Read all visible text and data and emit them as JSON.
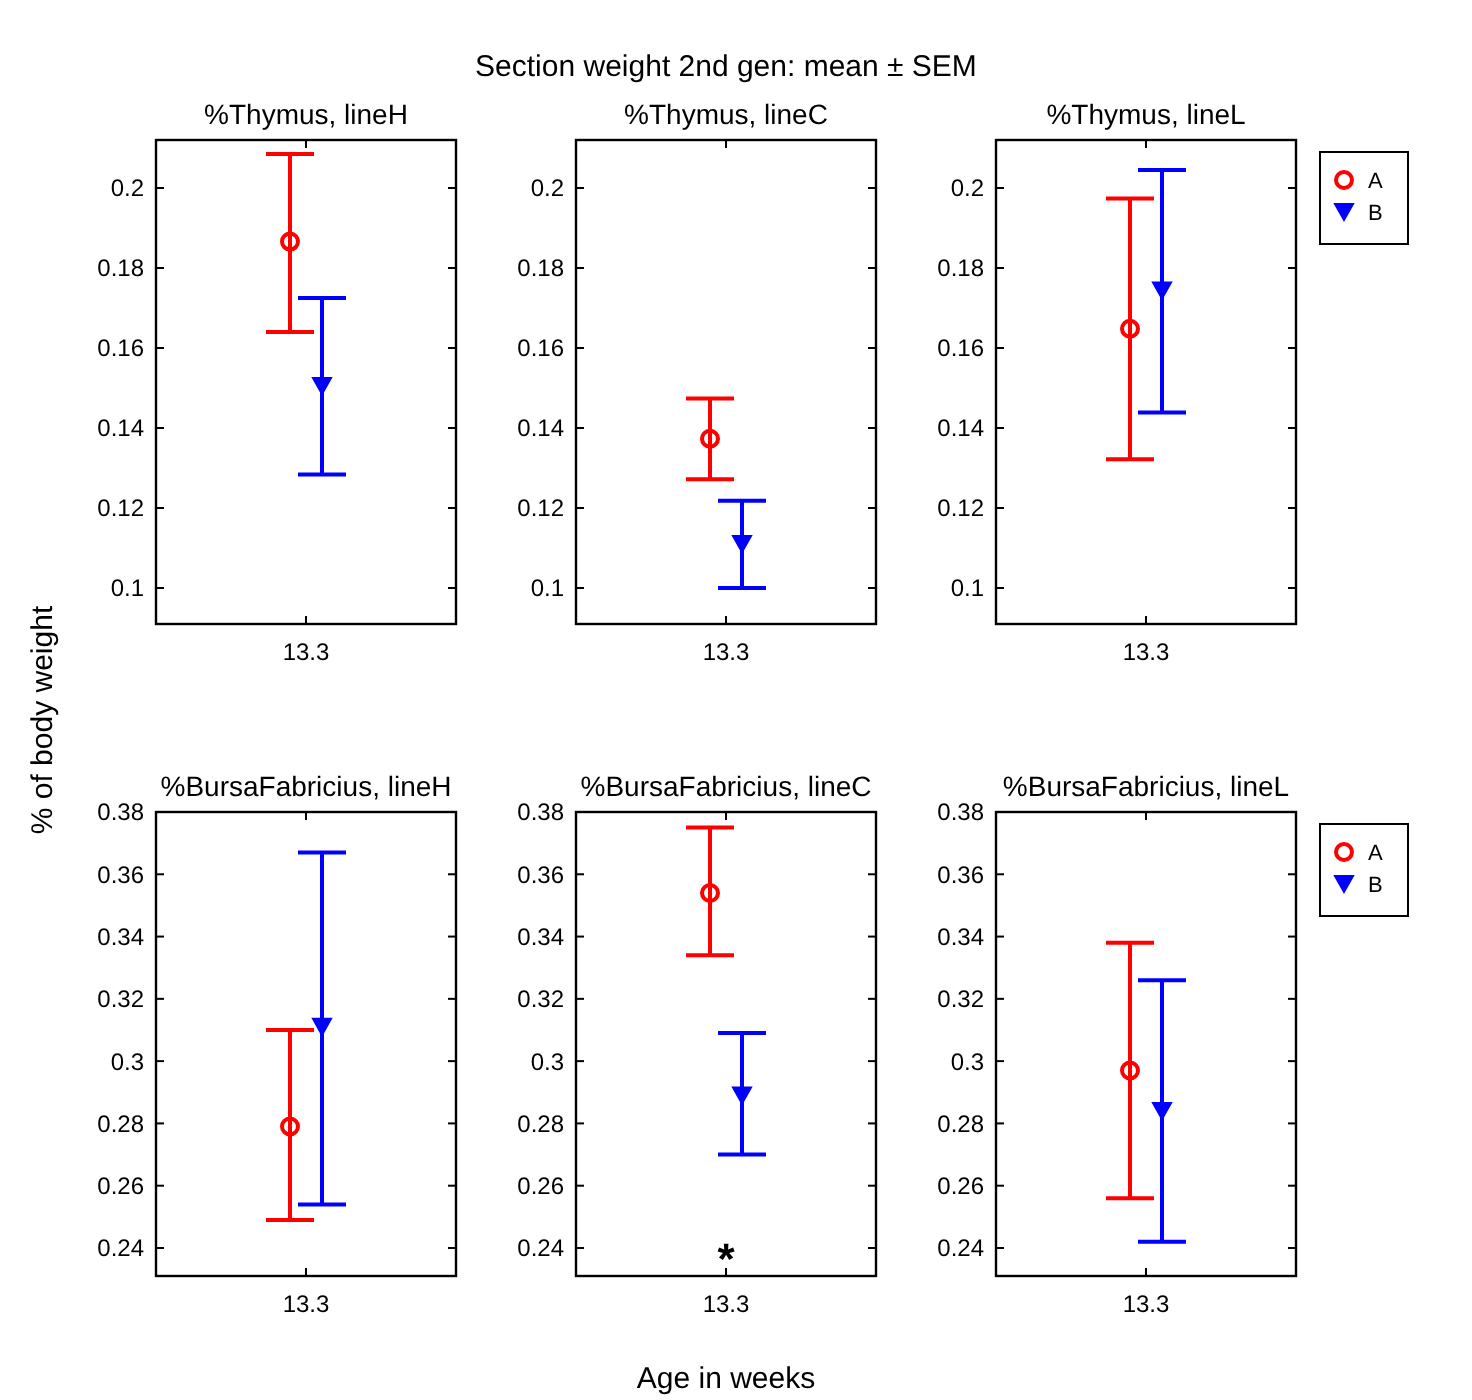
{
  "chart_data": [
    {
      "type": "scatter",
      "title": "%Thymus, lineH",
      "categories": [
        "13.3"
      ],
      "ylim": [
        0.091,
        0.212
      ],
      "yticks": [
        0.1,
        0.12,
        0.14,
        0.16,
        0.18,
        0.2
      ],
      "legend": false,
      "series": [
        {
          "color": "#ff0000",
          "marker": "circle",
          "values": [
            0.1866
          ],
          "errors": [
            [
              0.164,
              0.2085
            ]
          ]
        },
        {
          "color": "#0000ff",
          "marker": "triangle",
          "values": [
            0.1505
          ],
          "errors": [
            [
              0.1284,
              0.1725
            ]
          ]
        }
      ]
    },
    {
      "type": "scatter",
      "title": "%Thymus, lineC",
      "annotations": [
        "Section weight 2nd gen: mean ± SEM"
      ],
      "categories": [
        "13.3"
      ],
      "ylim": [
        0.091,
        0.212
      ],
      "yticks": [
        0.1,
        0.12,
        0.14,
        0.16,
        0.18,
        0.2
      ],
      "legend": false,
      "series": [
        {
          "color": "#ff0000",
          "marker": "circle",
          "values": [
            0.1373
          ],
          "errors": [
            [
              0.1272,
              0.1474
            ]
          ]
        },
        {
          "color": "#0000ff",
          "marker": "triangle",
          "values": [
            0.111
          ],
          "errors": [
            [
              0.1,
              0.1218
            ]
          ]
        }
      ]
    },
    {
      "type": "scatter",
      "title": "%Thymus, lineL",
      "categories": [
        "13.3"
      ],
      "ylim": [
        0.091,
        0.212
      ],
      "yticks": [
        0.1,
        0.12,
        0.14,
        0.16,
        0.18,
        0.2
      ],
      "legend": "right",
      "series": [
        {
          "name": "A",
          "color": "#ff0000",
          "marker": "circle",
          "values": [
            0.1648
          ],
          "errors": [
            [
              0.1322,
              0.1974
            ]
          ]
        },
        {
          "name": "B",
          "color": "#0000ff",
          "marker": "triangle",
          "values": [
            0.1744
          ],
          "errors": [
            [
              0.1439,
              0.2045
            ]
          ]
        }
      ]
    },
    {
      "type": "scatter",
      "title": "%BursaFabricius, lineH",
      "ylabel": "% of body weight",
      "categories": [
        "13.3"
      ],
      "ylim": [
        0.231,
        0.38
      ],
      "yticks": [
        0.24,
        0.26,
        0.28,
        0.3,
        0.32,
        0.34,
        0.36,
        0.38
      ],
      "legend": false,
      "series": [
        {
          "color": "#ff0000",
          "marker": "circle",
          "values": [
            0.279
          ],
          "errors": [
            [
              0.249,
              0.31
            ]
          ]
        },
        {
          "color": "#0000ff",
          "marker": "triangle",
          "values": [
            0.311
          ],
          "errors": [
            [
              0.254,
              0.367
            ]
          ]
        }
      ]
    },
    {
      "type": "scatter",
      "title": "%BursaFabricius, lineC",
      "xlabel": "Age in weeks",
      "annotations": [
        "*"
      ],
      "categories": [
        "13.3"
      ],
      "ylim": [
        0.231,
        0.38
      ],
      "yticks": [
        0.24,
        0.26,
        0.28,
        0.3,
        0.32,
        0.34,
        0.36,
        0.38
      ],
      "legend": false,
      "series": [
        {
          "color": "#ff0000",
          "marker": "circle",
          "values": [
            0.354
          ],
          "errors": [
            [
              0.334,
              0.375
            ]
          ]
        },
        {
          "color": "#0000ff",
          "marker": "triangle",
          "values": [
            0.289
          ],
          "errors": [
            [
              0.27,
              0.309
            ]
          ]
        }
      ]
    },
    {
      "type": "scatter",
      "title": "%BursaFabricius, lineL",
      "categories": [
        "13.3"
      ],
      "ylim": [
        0.231,
        0.38
      ],
      "yticks": [
        0.24,
        0.26,
        0.28,
        0.3,
        0.32,
        0.34,
        0.36,
        0.38
      ],
      "legend": "right",
      "series": [
        {
          "name": "A",
          "color": "#ff0000",
          "marker": "circle",
          "values": [
            0.297
          ],
          "errors": [
            [
              0.256,
              0.338
            ]
          ]
        },
        {
          "name": "B",
          "color": "#0000ff",
          "marker": "triangle",
          "values": [
            0.284
          ],
          "errors": [
            [
              0.242,
              0.326
            ]
          ]
        }
      ]
    }
  ]
}
